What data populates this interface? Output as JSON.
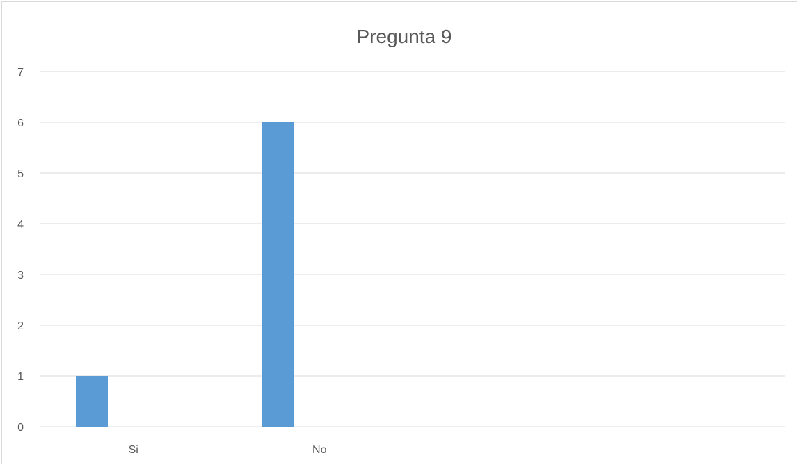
{
  "chart_data": {
    "type": "bar",
    "title": "Pregunta 9",
    "categories": [
      "Si",
      "No"
    ],
    "series": [
      {
        "values": [
          1,
          6
        ],
        "color": "#5b9bd5"
      }
    ],
    "ylim": [
      0,
      7
    ],
    "yticks": [
      "0",
      "1",
      "2",
      "3",
      "4",
      "5",
      "6",
      "7"
    ],
    "grid": true,
    "legend": "none"
  }
}
